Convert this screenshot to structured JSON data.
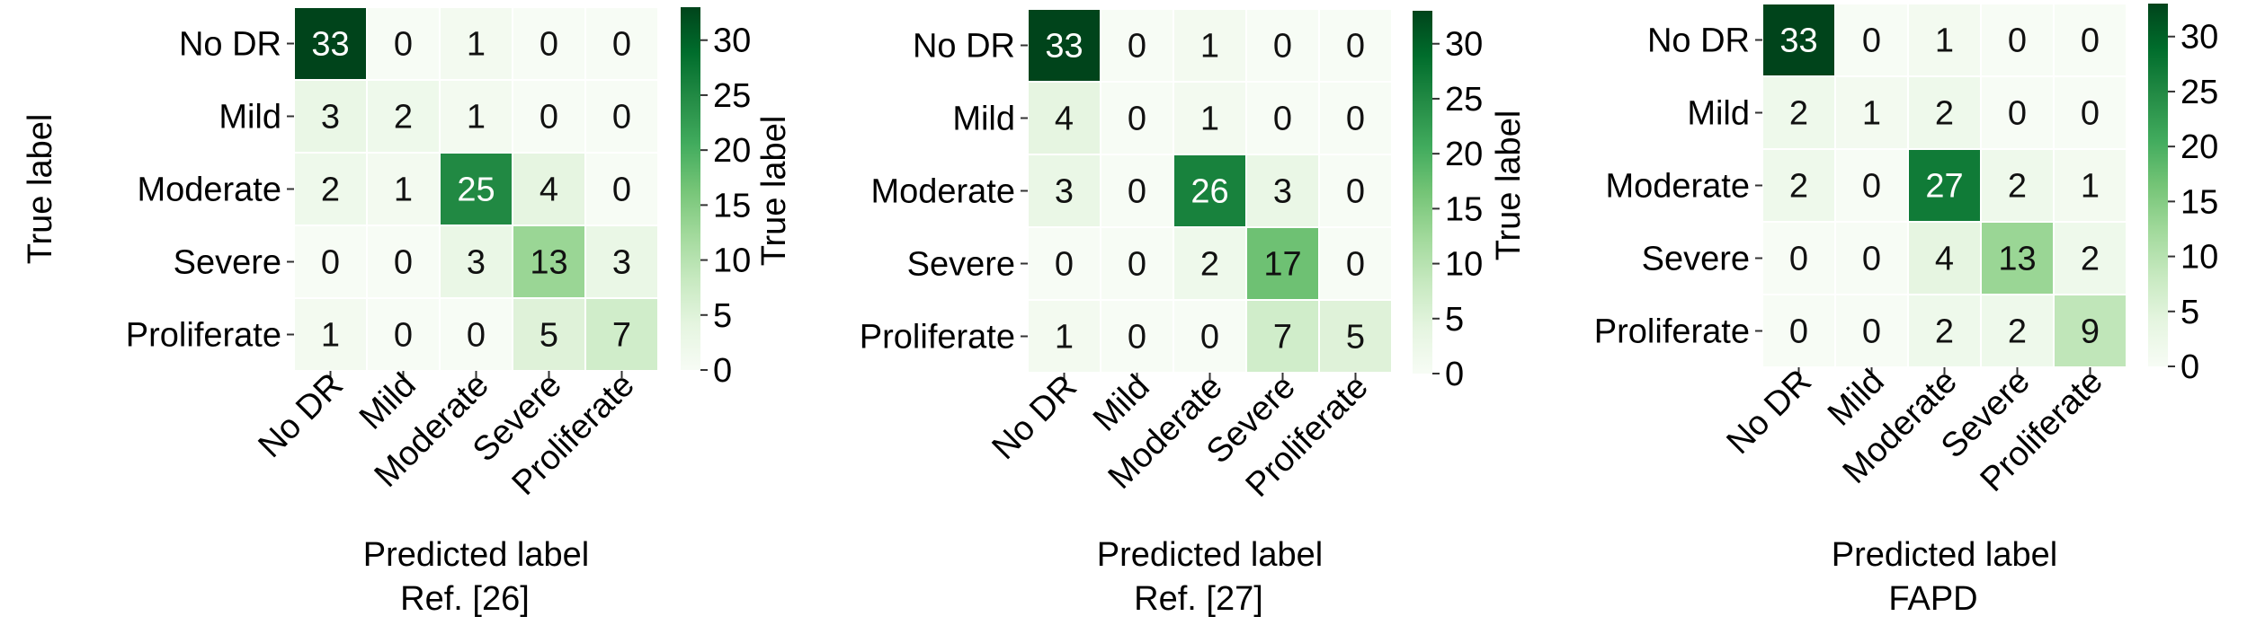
{
  "chart_data": [
    {
      "type": "heatmap",
      "title": "Ref. [26]",
      "xlabel": "Predicted label",
      "ylabel": "True label",
      "x_categories": [
        "No DR",
        "Mild",
        "Moderate",
        "Severe",
        "Proliferate"
      ],
      "y_categories": [
        "No DR",
        "Mild",
        "Moderate",
        "Severe",
        "Proliferate"
      ],
      "matrix": [
        [
          33,
          0,
          1,
          0,
          0
        ],
        [
          3,
          2,
          1,
          0,
          0
        ],
        [
          2,
          1,
          25,
          4,
          0
        ],
        [
          0,
          0,
          3,
          13,
          3
        ],
        [
          1,
          0,
          0,
          5,
          7
        ]
      ],
      "colorbar_ticks": [
        0,
        5,
        10,
        15,
        20,
        25,
        30
      ],
      "colorbar_range": [
        0,
        33
      ],
      "colormap": [
        "#f7fcf5",
        "#e5f5e0",
        "#c7e9c0",
        "#a1d99b",
        "#74c476",
        "#41ab5d",
        "#238b45",
        "#006d2c",
        "#00441b"
      ]
    },
    {
      "type": "heatmap",
      "title": "Ref. [27]",
      "xlabel": "Predicted label",
      "ylabel": "True label",
      "x_categories": [
        "No DR",
        "Mild",
        "Moderate",
        "Severe",
        "Proliferate"
      ],
      "y_categories": [
        "No DR",
        "Mild",
        "Moderate",
        "Severe",
        "Proliferate"
      ],
      "matrix": [
        [
          33,
          0,
          1,
          0,
          0
        ],
        [
          4,
          0,
          1,
          0,
          0
        ],
        [
          3,
          0,
          26,
          3,
          0
        ],
        [
          0,
          0,
          2,
          17,
          0
        ],
        [
          1,
          0,
          0,
          7,
          5
        ]
      ],
      "colorbar_ticks": [
        0,
        5,
        10,
        15,
        20,
        25,
        30
      ],
      "colorbar_range": [
        0,
        33
      ],
      "colormap": [
        "#f7fcf5",
        "#e5f5e0",
        "#c7e9c0",
        "#a1d99b",
        "#74c476",
        "#41ab5d",
        "#238b45",
        "#006d2c",
        "#00441b"
      ]
    },
    {
      "type": "heatmap",
      "title": "FAPD",
      "xlabel": "Predicted label",
      "ylabel": "True label",
      "x_categories": [
        "No DR",
        "Mild",
        "Moderate",
        "Severe",
        "Proliferate"
      ],
      "y_categories": [
        "No DR",
        "Mild",
        "Moderate",
        "Severe",
        "Proliferate"
      ],
      "matrix": [
        [
          33,
          0,
          1,
          0,
          0
        ],
        [
          2,
          1,
          2,
          0,
          0
        ],
        [
          2,
          0,
          27,
          2,
          1
        ],
        [
          0,
          0,
          4,
          13,
          2
        ],
        [
          0,
          0,
          2,
          2,
          9
        ]
      ],
      "colorbar_ticks": [
        0,
        5,
        10,
        15,
        20,
        25,
        30
      ],
      "colorbar_range": [
        0,
        33
      ],
      "colormap": [
        "#f7fcf5",
        "#e5f5e0",
        "#c7e9c0",
        "#a1d99b",
        "#74c476",
        "#41ab5d",
        "#238b45",
        "#006d2c",
        "#00441b"
      ]
    }
  ]
}
